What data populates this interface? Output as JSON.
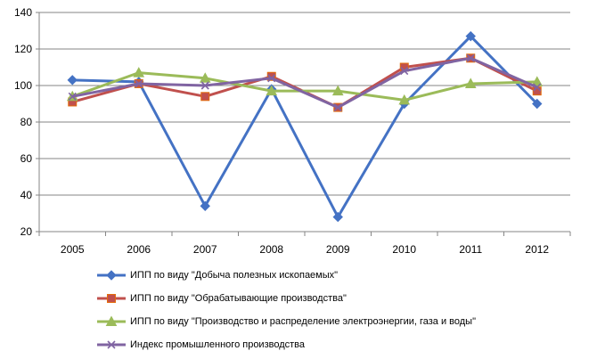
{
  "chart_data": {
    "type": "line",
    "x": [
      "2005",
      "2006",
      "2007",
      "2008",
      "2009",
      "2010",
      "2011",
      "2012"
    ],
    "ylim": [
      20,
      140
    ],
    "yticks": [
      "20",
      "40",
      "60",
      "80",
      "100",
      "120",
      "140"
    ],
    "grid": true,
    "legend_position": "bottom",
    "series": [
      {
        "name": "ИПП по виду \"Добыча полезных ископаемых\"",
        "color": "#4472C4",
        "marker": "diamond",
        "values": [
          103,
          102,
          34,
          98,
          28,
          90,
          127,
          90
        ]
      },
      {
        "name": "ИПП по виду \"Обрабатывающие производства\"",
        "color": "#C0504D",
        "marker": "square",
        "values": [
          91,
          101,
          94,
          105,
          88,
          110,
          115,
          97
        ]
      },
      {
        "name": "ИПП по виду \"Производство и распределение электроэнергии, газа и воды\"",
        "color": "#9BBB59",
        "marker": "triangle",
        "values": [
          94,
          107,
          104,
          97,
          97,
          92,
          101,
          102
        ]
      },
      {
        "name": "Индекс промышленного производства",
        "color": "#8064A2",
        "marker": "x",
        "values": [
          94,
          101,
          100,
          104,
          88,
          108,
          115,
          99
        ]
      }
    ]
  }
}
